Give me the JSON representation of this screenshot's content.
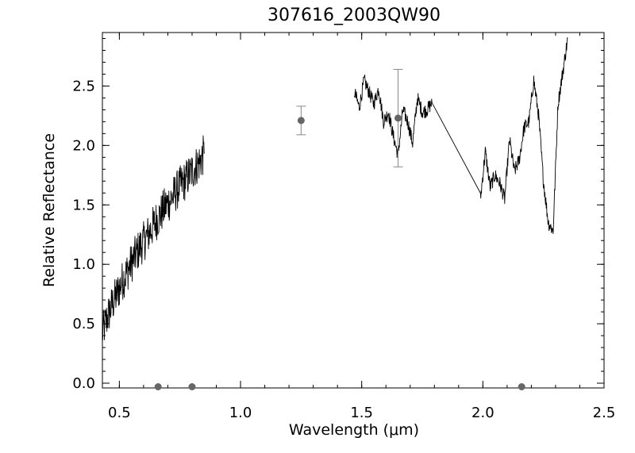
{
  "chart_data": {
    "type": "line",
    "title": "307616_2003QW90",
    "xlabel": "Wavelength (μm)",
    "ylabel": "Relative Reflectance",
    "xlim": [
      0.43,
      2.5
    ],
    "ylim": [
      -0.04,
      2.95
    ],
    "xticks": [
      {
        "value": 0.5,
        "label": "0.5"
      },
      {
        "value": 1.0,
        "label": "1.0"
      },
      {
        "value": 1.5,
        "label": "1.5"
      },
      {
        "value": 2.0,
        "label": "2.0"
      },
      {
        "value": 2.5,
        "label": "2.5"
      }
    ],
    "yticks": [
      {
        "value": 0.0,
        "label": "0.0"
      },
      {
        "value": 0.5,
        "label": "0.5"
      },
      {
        "value": 1.0,
        "label": "1.0"
      },
      {
        "value": 1.5,
        "label": "1.5"
      },
      {
        "value": 2.0,
        "label": "2.0"
      },
      {
        "value": 2.5,
        "label": "2.5"
      }
    ],
    "grid": false,
    "legend": "none",
    "line_color": "#000000",
    "point_color": "#666666",
    "series": [
      {
        "kind": "line",
        "segments": [
          {
            "x": [
              0.43,
              0.45,
              0.47,
              0.49,
              0.51,
              0.53,
              0.55,
              0.57,
              0.59,
              0.61,
              0.63,
              0.65,
              0.67,
              0.69,
              0.71,
              0.73,
              0.75,
              0.77,
              0.79,
              0.81,
              0.83,
              0.85
            ],
            "y": [
              0.42,
              0.55,
              0.66,
              0.75,
              0.85,
              0.93,
              1.01,
              1.09,
              1.16,
              1.22,
              1.29,
              1.36,
              1.42,
              1.49,
              1.54,
              1.6,
              1.66,
              1.7,
              1.76,
              1.81,
              1.86,
              1.93
            ],
            "noise": 0.17
          },
          {
            "x": [
              1.47,
              1.49,
              1.51,
              1.53,
              1.55,
              1.57,
              1.59,
              1.61,
              1.63,
              1.65,
              1.67,
              1.69,
              1.71,
              1.73,
              1.75,
              1.77,
              1.79,
              1.99,
              2.01,
              2.03,
              2.05,
              2.07,
              2.09,
              2.11,
              2.13,
              2.15,
              2.17,
              2.19,
              2.21,
              2.23,
              2.25,
              2.27,
              2.29,
              2.31,
              2.33,
              2.35
            ],
            "y": [
              2.45,
              2.32,
              2.55,
              2.45,
              2.35,
              2.48,
              2.2,
              2.28,
              2.08,
              1.92,
              2.3,
              2.2,
              2.02,
              2.4,
              2.28,
              2.3,
              2.36,
              1.55,
              1.95,
              1.65,
              1.75,
              1.68,
              1.55,
              2.05,
              1.78,
              1.88,
              2.15,
              2.2,
              2.55,
              2.25,
              1.7,
              1.35,
              1.28,
              2.35,
              2.62,
              2.9
            ],
            "noise": 0.06
          }
        ]
      },
      {
        "kind": "points",
        "x": [
          0.66,
          0.8,
          1.25,
          1.65,
          2.16
        ],
        "y": [
          -0.03,
          -0.03,
          2.21,
          2.23,
          -0.03
        ],
        "err": [
          0,
          0,
          0.12,
          0.41,
          0
        ]
      }
    ]
  }
}
